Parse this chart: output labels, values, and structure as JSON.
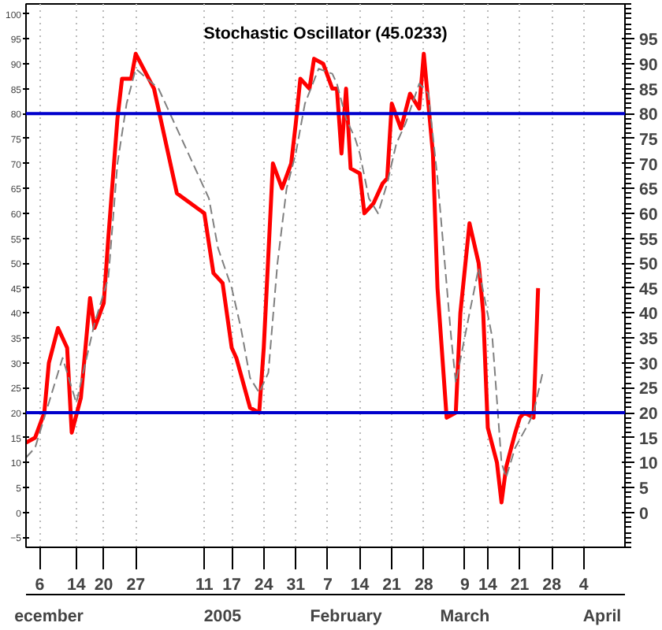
{
  "chart_data": {
    "type": "line",
    "title": "Stochastic Oscillator (45.0233)",
    "xlim": [
      "2004-12-03",
      "2005-04-13"
    ],
    "ylim": [
      -7,
      102
    ],
    "xticks": [
      {
        "value": "2004-12-06",
        "label": "6"
      },
      {
        "value": "2004-12-14",
        "label": "14"
      },
      {
        "value": "2004-12-20",
        "label": "20"
      },
      {
        "value": "2004-12-27",
        "label": "27"
      },
      {
        "value": "2005-01-11",
        "label": "11"
      },
      {
        "value": "2005-01-17",
        "label": "17"
      },
      {
        "value": "2005-01-24",
        "label": "24"
      },
      {
        "value": "2005-01-31",
        "label": "31"
      },
      {
        "value": "2005-02-07",
        "label": "7"
      },
      {
        "value": "2005-02-14",
        "label": "14"
      },
      {
        "value": "2005-02-21",
        "label": "21"
      },
      {
        "value": "2005-02-28",
        "label": "28"
      },
      {
        "value": "2005-03-09",
        "label": "9"
      },
      {
        "value": "2005-03-14",
        "label": "14"
      },
      {
        "value": "2005-03-21",
        "label": "21"
      },
      {
        "value": "2005-03-28",
        "label": "28"
      },
      {
        "value": "2005-04-04",
        "label": "4"
      }
    ],
    "x2lim": [
      "2004-12-03",
      "2005-04-13"
    ],
    "x2ticks": [
      {
        "value": "2004-12-08",
        "label": "ecember"
      },
      {
        "value": "2005-01-15",
        "label": "2005"
      },
      {
        "value": "2005-02-11",
        "label": "February"
      },
      {
        "value": "2005-03-09",
        "label": "March"
      },
      {
        "value": "2005-04-08",
        "label": "April"
      }
    ],
    "yticks": [
      -5,
      0,
      5,
      10,
      15,
      20,
      25,
      30,
      35,
      40,
      45,
      50,
      55,
      60,
      65,
      70,
      75,
      80,
      85,
      90,
      95,
      100
    ],
    "y2lim": [
      -7,
      102
    ],
    "y2ticks": [
      0,
      5,
      10,
      15,
      20,
      25,
      30,
      35,
      40,
      45,
      50,
      55,
      60,
      65,
      70,
      75,
      80,
      85,
      90,
      95
    ],
    "grid": "x",
    "marker": "none",
    "ref_lines": [
      {
        "axis": "y",
        "value": 80,
        "color": "#0000cc"
      },
      {
        "axis": "y",
        "value": 20,
        "color": "#0000cc"
      }
    ],
    "series": [
      {
        "color": "#ff0000",
        "line_style": "solid",
        "x": [
          "2004-12-03",
          "2004-12-05",
          "2004-12-07",
          "2004-12-08",
          "2004-12-10",
          "2004-12-12",
          "2004-12-13",
          "2004-12-15",
          "2004-12-17",
          "2004-12-18",
          "2004-12-20",
          "2004-12-21",
          "2004-12-23",
          "2004-12-24",
          "2004-12-26",
          "2004-12-27",
          "2004-12-31",
          "2005-01-05",
          "2005-01-11",
          "2005-01-13",
          "2005-01-14",
          "2005-01-15",
          "2005-01-17",
          "2005-01-18",
          "2005-01-21",
          "2005-01-23",
          "2005-01-24",
          "2005-01-26",
          "2005-01-28",
          "2005-01-30",
          "2005-01-31",
          "2005-02-01",
          "2005-02-03",
          "2005-02-04",
          "2005-02-06",
          "2005-02-08",
          "2005-02-09",
          "2005-02-10",
          "2005-02-11",
          "2005-02-12",
          "2005-02-14",
          "2005-02-15",
          "2005-02-17",
          "2005-02-19",
          "2005-02-20",
          "2005-02-21",
          "2005-02-23",
          "2005-02-25",
          "2005-02-27",
          "2005-02-28",
          "2005-03-02",
          "2005-03-03",
          "2005-03-05",
          "2005-03-07",
          "2005-03-08",
          "2005-03-10",
          "2005-03-12",
          "2005-03-13",
          "2005-03-14",
          "2005-03-16",
          "2005-03-17",
          "2005-03-18",
          "2005-03-20",
          "2005-03-21",
          "2005-03-22",
          "2005-03-24",
          "2005-03-25"
        ],
        "values": [
          14,
          15,
          20,
          30,
          37,
          33,
          16,
          23,
          43,
          37,
          42,
          55,
          79,
          87,
          87,
          92,
          85,
          64,
          60,
          48,
          47,
          46,
          33,
          31,
          21,
          20,
          33,
          70,
          65,
          70,
          78,
          87,
          85,
          91,
          90,
          85,
          85,
          72,
          85,
          69,
          68,
          60,
          62,
          66,
          67,
          82,
          77,
          84,
          81,
          92,
          72,
          45,
          19,
          20,
          40,
          58,
          50,
          40,
          17,
          10,
          2,
          9,
          16,
          19,
          20,
          19,
          45
        ]
      },
      {
        "color": "#808080",
        "line_style": "dashed",
        "x": [
          "2004-12-03",
          "2004-12-05",
          "2004-12-08",
          "2004-12-11",
          "2004-12-12",
          "2004-12-14",
          "2004-12-16",
          "2004-12-18",
          "2004-12-21",
          "2004-12-23",
          "2004-12-25",
          "2004-12-27",
          "2005-01-01",
          "2005-01-06",
          "2005-01-12",
          "2005-01-14",
          "2005-01-17",
          "2005-01-19",
          "2005-01-21",
          "2005-01-23",
          "2005-01-25",
          "2005-01-27",
          "2005-01-29",
          "2005-01-31",
          "2005-02-02",
          "2005-02-05",
          "2005-02-08",
          "2005-02-09",
          "2005-02-11",
          "2005-02-13",
          "2005-02-14",
          "2005-02-16",
          "2005-02-18",
          "2005-02-20",
          "2005-02-22",
          "2005-02-24",
          "2005-02-27",
          "2005-03-01",
          "2005-03-03",
          "2005-03-06",
          "2005-03-07",
          "2005-03-10",
          "2005-03-12",
          "2005-03-15",
          "2005-03-17",
          "2005-03-18",
          "2005-03-20",
          "2005-03-23",
          "2005-03-24",
          "2005-03-26"
        ],
        "values": [
          11,
          13,
          22,
          31,
          28,
          22,
          30,
          38,
          47,
          70,
          82,
          89,
          85,
          75,
          63,
          53,
          45,
          37,
          27,
          24,
          28,
          50,
          65,
          72,
          82,
          89,
          88,
          86,
          79,
          75,
          72,
          63,
          60,
          66,
          74,
          78,
          86,
          84,
          67,
          35,
          26,
          40,
          49,
          35,
          10,
          7,
          13,
          18,
          20,
          28
        ]
      }
    ]
  }
}
